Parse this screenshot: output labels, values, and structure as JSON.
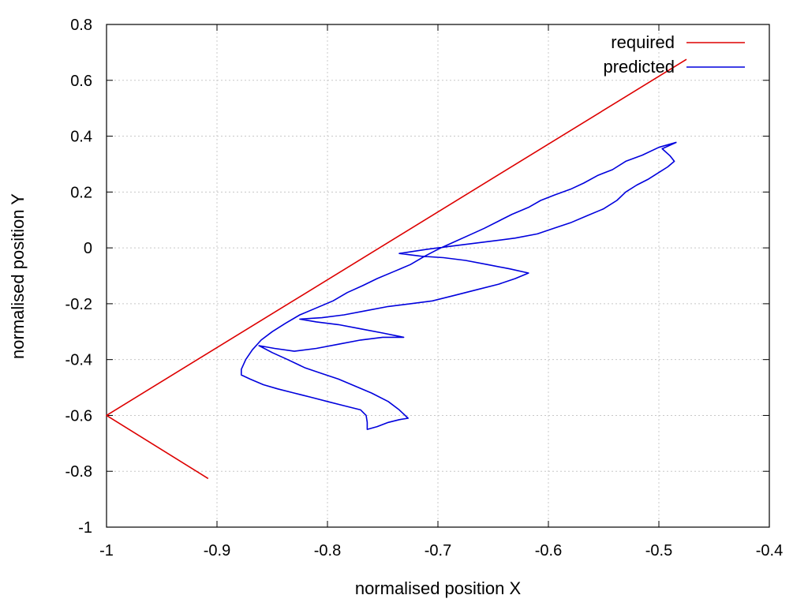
{
  "chart_data": {
    "type": "line",
    "xlabel": "normalised position X",
    "ylabel": "normalised position Y",
    "xlim": [
      -1,
      -0.4
    ],
    "ylim": [
      -1,
      0.8
    ],
    "x_ticks": [
      -1,
      -0.9,
      -0.8,
      -0.7,
      -0.6,
      -0.5,
      -0.4
    ],
    "x_tick_labels": [
      "-1",
      "-0.9",
      "-0.8",
      "-0.7",
      "-0.6",
      "-0.5",
      "-0.4"
    ],
    "y_ticks": [
      -1,
      -0.8,
      -0.6,
      -0.4,
      -0.2,
      0,
      0.2,
      0.4,
      0.6,
      0.8
    ],
    "y_tick_labels": [
      "-1",
      "-0.8",
      "-0.6",
      "-0.4",
      "-0.2",
      "0",
      "0.2",
      "0.4",
      "0.6",
      "0.8"
    ],
    "grid": true,
    "legend_position": "top-right",
    "series": [
      {
        "name": "required",
        "color": "#dd0000",
        "points": [
          [
            -0.908,
            -0.826
          ],
          [
            -1.0,
            -0.6
          ],
          [
            -0.475,
            0.675
          ]
        ]
      },
      {
        "name": "predicted",
        "color": "#0000dd",
        "points": [
          [
            -0.484,
            0.378
          ],
          [
            -0.5,
            0.36
          ],
          [
            -0.515,
            0.332
          ],
          [
            -0.53,
            0.31
          ],
          [
            -0.542,
            0.28
          ],
          [
            -0.555,
            0.26
          ],
          [
            -0.568,
            0.232
          ],
          [
            -0.58,
            0.21
          ],
          [
            -0.594,
            0.19
          ],
          [
            -0.607,
            0.17
          ],
          [
            -0.618,
            0.145
          ],
          [
            -0.633,
            0.12
          ],
          [
            -0.645,
            0.096
          ],
          [
            -0.658,
            0.07
          ],
          [
            -0.672,
            0.045
          ],
          [
            -0.686,
            0.02
          ],
          [
            -0.7,
            -0.005
          ],
          [
            -0.712,
            -0.03
          ],
          [
            -0.725,
            -0.06
          ],
          [
            -0.74,
            -0.085
          ],
          [
            -0.755,
            -0.11
          ],
          [
            -0.768,
            -0.135
          ],
          [
            -0.782,
            -0.16
          ],
          [
            -0.795,
            -0.19
          ],
          [
            -0.81,
            -0.215
          ],
          [
            -0.825,
            -0.24
          ],
          [
            -0.838,
            -0.27
          ],
          [
            -0.85,
            -0.3
          ],
          [
            -0.86,
            -0.33
          ],
          [
            -0.868,
            -0.365
          ],
          [
            -0.874,
            -0.4
          ],
          [
            -0.878,
            -0.435
          ],
          [
            -0.878,
            -0.455
          ],
          [
            -0.87,
            -0.47
          ],
          [
            -0.858,
            -0.49
          ],
          [
            -0.845,
            -0.505
          ],
          [
            -0.83,
            -0.52
          ],
          [
            -0.815,
            -0.535
          ],
          [
            -0.8,
            -0.55
          ],
          [
            -0.785,
            -0.565
          ],
          [
            -0.77,
            -0.58
          ],
          [
            -0.765,
            -0.6
          ],
          [
            -0.764,
            -0.625
          ],
          [
            -0.764,
            -0.65
          ],
          [
            -0.755,
            -0.64
          ],
          [
            -0.745,
            -0.625
          ],
          [
            -0.735,
            -0.615
          ],
          [
            -0.727,
            -0.61
          ],
          [
            -0.735,
            -0.58
          ],
          [
            -0.745,
            -0.55
          ],
          [
            -0.76,
            -0.52
          ],
          [
            -0.775,
            -0.495
          ],
          [
            -0.79,
            -0.47
          ],
          [
            -0.805,
            -0.45
          ],
          [
            -0.82,
            -0.43
          ],
          [
            -0.836,
            -0.4
          ],
          [
            -0.85,
            -0.375
          ],
          [
            -0.862,
            -0.35
          ],
          [
            -0.848,
            -0.36
          ],
          [
            -0.83,
            -0.37
          ],
          [
            -0.81,
            -0.36
          ],
          [
            -0.79,
            -0.345
          ],
          [
            -0.77,
            -0.33
          ],
          [
            -0.75,
            -0.32
          ],
          [
            -0.731,
            -0.32
          ],
          [
            -0.75,
            -0.305
          ],
          [
            -0.77,
            -0.29
          ],
          [
            -0.79,
            -0.275
          ],
          [
            -0.81,
            -0.265
          ],
          [
            -0.825,
            -0.255
          ],
          [
            -0.805,
            -0.25
          ],
          [
            -0.785,
            -0.24
          ],
          [
            -0.765,
            -0.225
          ],
          [
            -0.745,
            -0.21
          ],
          [
            -0.725,
            -0.2
          ],
          [
            -0.705,
            -0.19
          ],
          [
            -0.685,
            -0.17
          ],
          [
            -0.665,
            -0.15
          ],
          [
            -0.645,
            -0.13
          ],
          [
            -0.63,
            -0.11
          ],
          [
            -0.618,
            -0.09
          ],
          [
            -0.635,
            -0.075
          ],
          [
            -0.655,
            -0.06
          ],
          [
            -0.675,
            -0.045
          ],
          [
            -0.695,
            -0.035
          ],
          [
            -0.715,
            -0.03
          ],
          [
            -0.735,
            -0.02
          ],
          [
            -0.71,
            -0.005
          ],
          [
            -0.69,
            0.005
          ],
          [
            -0.67,
            0.015
          ],
          [
            -0.65,
            0.025
          ],
          [
            -0.63,
            0.035
          ],
          [
            -0.61,
            0.05
          ],
          [
            -0.595,
            0.07
          ],
          [
            -0.58,
            0.09
          ],
          [
            -0.565,
            0.115
          ],
          [
            -0.55,
            0.14
          ],
          [
            -0.538,
            0.17
          ],
          [
            -0.53,
            0.2
          ],
          [
            -0.52,
            0.225
          ],
          [
            -0.51,
            0.245
          ],
          [
            -0.5,
            0.27
          ],
          [
            -0.492,
            0.29
          ],
          [
            -0.486,
            0.31
          ],
          [
            -0.49,
            0.33
          ],
          [
            -0.497,
            0.355
          ],
          [
            -0.484,
            0.378
          ]
        ]
      }
    ]
  }
}
